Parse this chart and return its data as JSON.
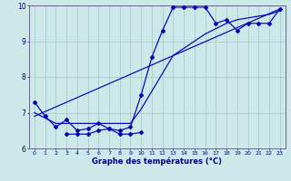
{
  "xlabel": "Graphe des températures (°C)",
  "background_color": "#cce8e8",
  "grid_color": "#aacccc",
  "line_color": "#0000bb",
  "xlim": [
    -0.5,
    23.5
  ],
  "ylim": [
    6,
    10
  ],
  "xticks": [
    0,
    1,
    2,
    3,
    4,
    5,
    6,
    7,
    8,
    9,
    10,
    11,
    12,
    13,
    14,
    15,
    16,
    17,
    18,
    19,
    20,
    21,
    22,
    23
  ],
  "yticks": [
    6,
    7,
    8,
    9,
    10
  ],
  "series1_x": [
    0,
    1,
    2,
    3,
    4,
    5,
    6,
    7,
    8,
    9,
    10,
    11,
    12,
    13,
    14,
    15,
    16,
    17,
    18,
    19,
    20,
    21,
    22,
    23
  ],
  "series1_y": [
    7.3,
    6.9,
    6.6,
    6.8,
    6.5,
    6.55,
    6.7,
    6.55,
    6.5,
    6.6,
    7.5,
    8.55,
    9.3,
    9.95,
    9.95,
    9.95,
    9.95,
    9.5,
    9.6,
    9.3,
    9.5,
    9.5,
    9.5,
    9.9
  ],
  "series2_x": [
    0,
    1,
    2,
    3,
    4,
    5,
    6,
    7,
    8,
    9,
    10,
    11,
    12,
    13,
    14,
    15,
    16,
    17,
    18,
    19,
    20,
    21,
    22,
    23
  ],
  "series2_y": [
    7.0,
    6.85,
    6.7,
    6.7,
    6.7,
    6.7,
    6.7,
    6.7,
    6.7,
    6.7,
    7.1,
    7.6,
    8.1,
    8.6,
    8.8,
    9.0,
    9.2,
    9.35,
    9.5,
    9.6,
    9.65,
    9.7,
    9.75,
    9.85
  ],
  "series3_x": [
    0,
    23
  ],
  "series3_y": [
    6.9,
    9.9
  ],
  "series4_x": [
    3,
    4,
    5,
    6,
    7,
    8,
    9,
    10
  ],
  "series4_y": [
    6.4,
    6.4,
    6.4,
    6.5,
    6.55,
    6.4,
    6.4,
    6.45
  ]
}
